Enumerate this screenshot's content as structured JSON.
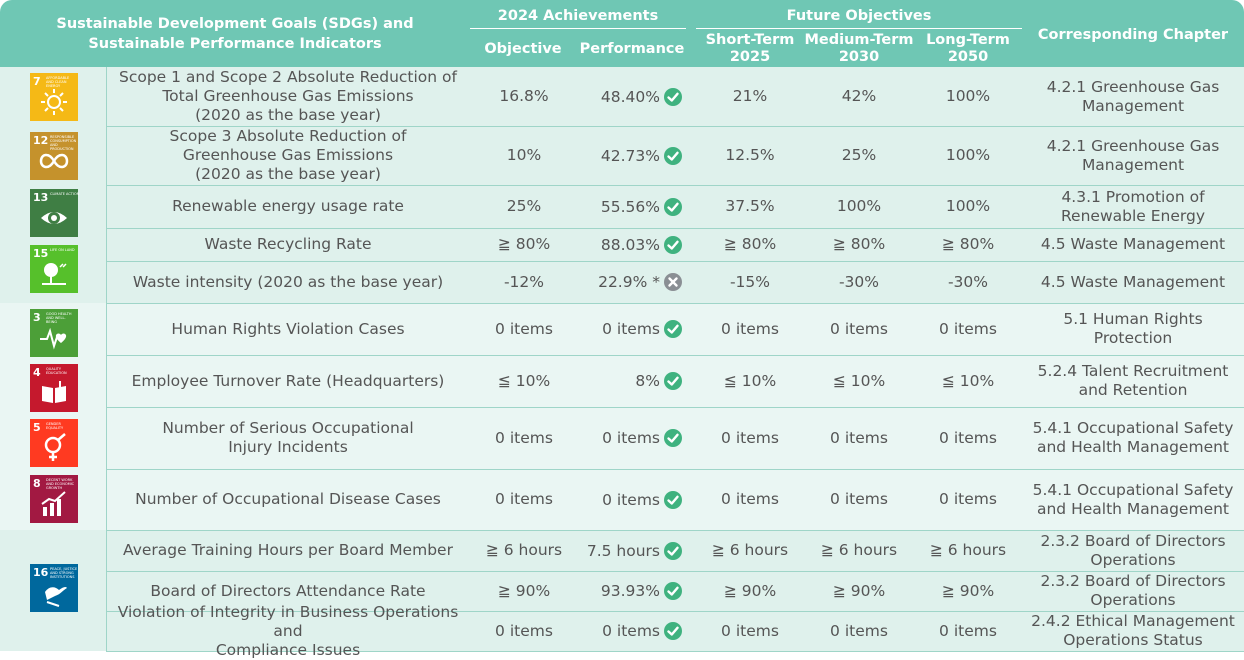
{
  "header": {
    "sdg_col": "Sustainable Development Goals (SDGs) and Sustainable Performance Indicators",
    "achievements": "2024 Achievements",
    "objective": "Objective",
    "performance": "Performance",
    "future": "Future Objectives",
    "short_term": "Short-Term",
    "short_year": "2025",
    "medium_term": "Medium-Term",
    "medium_year": "2030",
    "long_term": "Long-Term",
    "long_year": "2050",
    "chapter": "Corresponding Chapter"
  },
  "sdg_icons": [
    {
      "number": "7",
      "label": "AFFORDABLE AND CLEAN ENERGY",
      "icon": "sun-icon",
      "color": "#f5b916"
    },
    {
      "number": "12",
      "label": "RESPONSIBLE CONSUMPTION AND PRODUCTION",
      "icon": "infinity-icon",
      "color": "#c5922c"
    },
    {
      "number": "13",
      "label": "CLIMATE ACTION",
      "icon": "eye-globe-icon",
      "color": "#3f7e44"
    },
    {
      "number": "15",
      "label": "LIFE ON LAND",
      "icon": "tree-icon",
      "color": "#56c02b"
    },
    {
      "number": "3",
      "label": "GOOD HEALTH AND WELL-BEING",
      "icon": "heartbeat-icon",
      "color": "#4c9f38"
    },
    {
      "number": "4",
      "label": "QUALITY EDUCATION",
      "icon": "book-icon",
      "color": "#c5192d"
    },
    {
      "number": "5",
      "label": "GENDER EQUALITY",
      "icon": "gender-icon",
      "color": "#ff3a21"
    },
    {
      "number": "8",
      "label": "DECENT WORK AND ECONOMIC GROWTH",
      "icon": "growth-chart-icon",
      "color": "#a21942"
    },
    {
      "number": "16",
      "label": "PEACE, JUSTICE AND STRONG INSTITUTIONS",
      "icon": "dove-icon",
      "color": "#00689d"
    }
  ],
  "rows": [
    {
      "indicator": [
        "Scope 1 and Scope 2 Absolute Reduction of",
        "Total Greenhouse Gas Emissions",
        "(2020 as the base year)"
      ],
      "objective": "16.8%",
      "performance": "48.40%",
      "status": "check-icon",
      "short": "21%",
      "medium": "42%",
      "long": "100%",
      "chapter": [
        "4.2.1 Greenhouse Gas",
        "Management"
      ]
    },
    {
      "indicator": [
        "Scope 3 Absolute Reduction of",
        "Greenhouse Gas Emissions",
        "(2020 as the base year)"
      ],
      "objective": "10%",
      "performance": "42.73%",
      "status": "check-icon",
      "short": "12.5%",
      "medium": "25%",
      "long": "100%",
      "chapter": [
        "4.2.1 Greenhouse Gas",
        "Management"
      ]
    },
    {
      "indicator": [
        "Renewable energy usage rate"
      ],
      "objective": "25%",
      "performance": "55.56%",
      "status": "check-icon",
      "short": "37.5%",
      "medium": "100%",
      "long": "100%",
      "chapter": [
        "4.3.1 Promotion of",
        "Renewable Energy"
      ]
    },
    {
      "indicator": [
        "Waste Recycling Rate"
      ],
      "objective": "≧ 80%",
      "performance": "88.03%",
      "status": "check-icon",
      "short": "≧ 80%",
      "medium": "≧ 80%",
      "long": "≧ 80%",
      "chapter": [
        "4.5 Waste Management"
      ]
    },
    {
      "indicator": [
        "Waste intensity (2020 as the base year)"
      ],
      "objective": "-12%",
      "performance": "22.9% *",
      "status": "cross-icon",
      "short": "-15%",
      "medium": "-30%",
      "long": "-30%",
      "chapter": [
        "4.5 Waste Management"
      ]
    },
    {
      "indicator": [
        "Human Rights Violation Cases"
      ],
      "objective": "0 items",
      "performance": "0 items",
      "status": "check-icon",
      "short": "0 items",
      "medium": "0 items",
      "long": "0 items",
      "chapter": [
        "5.1 Human Rights",
        "Protection"
      ]
    },
    {
      "indicator": [
        "Employee Turnover Rate (Headquarters)"
      ],
      "objective": "≦ 10%",
      "performance": "8%",
      "status": "check-icon",
      "short": "≦ 10%",
      "medium": "≦ 10%",
      "long": "≦ 10%",
      "chapter": [
        "5.2.4 Talent Recruitment",
        "and Retention"
      ]
    },
    {
      "indicator": [
        "Number of Serious Occupational",
        "Injury Incidents"
      ],
      "objective": "0 items",
      "performance": "0 items",
      "status": "check-icon",
      "short": "0 items",
      "medium": "0 items",
      "long": "0 items",
      "chapter": [
        "5.4.1 Occupational Safety",
        "and Health Management"
      ]
    },
    {
      "indicator": [
        "Number of Occupational Disease Cases"
      ],
      "objective": "0 items",
      "performance": "0 items",
      "status": "check-icon",
      "short": "0 items",
      "medium": "0 items",
      "long": "0 items",
      "chapter": [
        "5.4.1 Occupational Safety",
        "and Health Management"
      ]
    },
    {
      "indicator": [
        "Average Training Hours per Board Member"
      ],
      "objective": "≧ 6 hours",
      "performance": "7.5 hours",
      "status": "check-icon",
      "short": "≧ 6 hours",
      "medium": "≧ 6 hours",
      "long": "≧ 6 hours",
      "chapter": [
        "2.3.2 Board of Directors",
        "Operations"
      ]
    },
    {
      "indicator": [
        "Board of Directors Attendance Rate"
      ],
      "objective": "≧ 90%",
      "performance": "93.93%",
      "status": "check-icon",
      "short": "≧ 90%",
      "medium": "≧ 90%",
      "long": "≧ 90%",
      "chapter": [
        "2.3.2 Board of Directors",
        "Operations"
      ]
    },
    {
      "indicator": [
        "Violation of Integrity in Business Operations and",
        "Compliance Issues"
      ],
      "objective": "0 items",
      "performance": "0 items",
      "status": "check-icon",
      "short": "0 items",
      "medium": "0 items",
      "long": "0 items",
      "chapter": [
        "2.4.2 Ethical Management",
        "Operations Status"
      ]
    }
  ],
  "colors": {
    "header": "#6fc7b4",
    "band_a": "#dff1ec",
    "band_b": "#eaf6f3",
    "check": "#3fb27f",
    "cross": "#8a8f94",
    "text": "#555555"
  }
}
